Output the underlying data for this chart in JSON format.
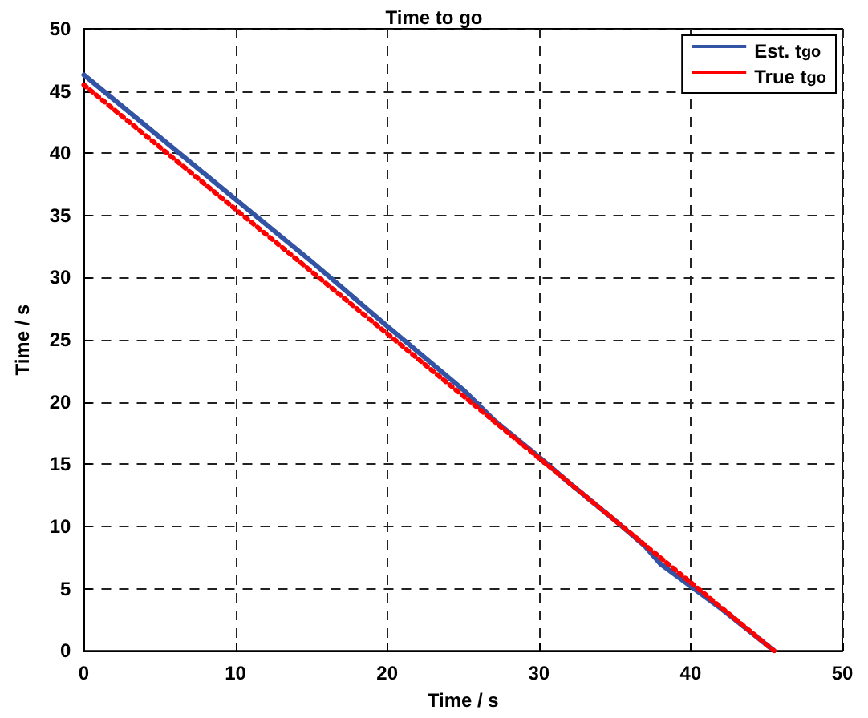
{
  "chart_data": {
    "type": "line",
    "title": "Time to go",
    "xlabel": "Time / s",
    "ylabel": "Time / s",
    "xlim": [
      0,
      50
    ],
    "xticks": [
      0,
      10,
      20,
      30,
      40,
      50
    ],
    "ylim": [
      0,
      50
    ],
    "yticks": [
      0,
      5,
      10,
      15,
      20,
      25,
      30,
      35,
      40,
      45,
      50
    ],
    "grid": true,
    "legend": "top right",
    "marker": "none",
    "series": [
      {
        "name": "Est. t$_{go}$",
        "color": "#3353a5",
        "line_style": "solid",
        "x": [
          0,
          5,
          10,
          15,
          20,
          25,
          27,
          30,
          32,
          35,
          37,
          38,
          40,
          42,
          45.5
        ],
        "values": [
          46.3,
          41.3,
          36.3,
          31.3,
          26.1,
          21,
          18.6,
          15.6,
          13.5,
          10.5,
          8.4,
          7,
          5.2,
          3.4,
          0
        ]
      },
      {
        "name": "True t$_{go}$",
        "color": "#ff0000",
        "line_style": "dotted",
        "x": [
          0,
          45.5
        ],
        "values": [
          45.5,
          0
        ]
      }
    ]
  }
}
